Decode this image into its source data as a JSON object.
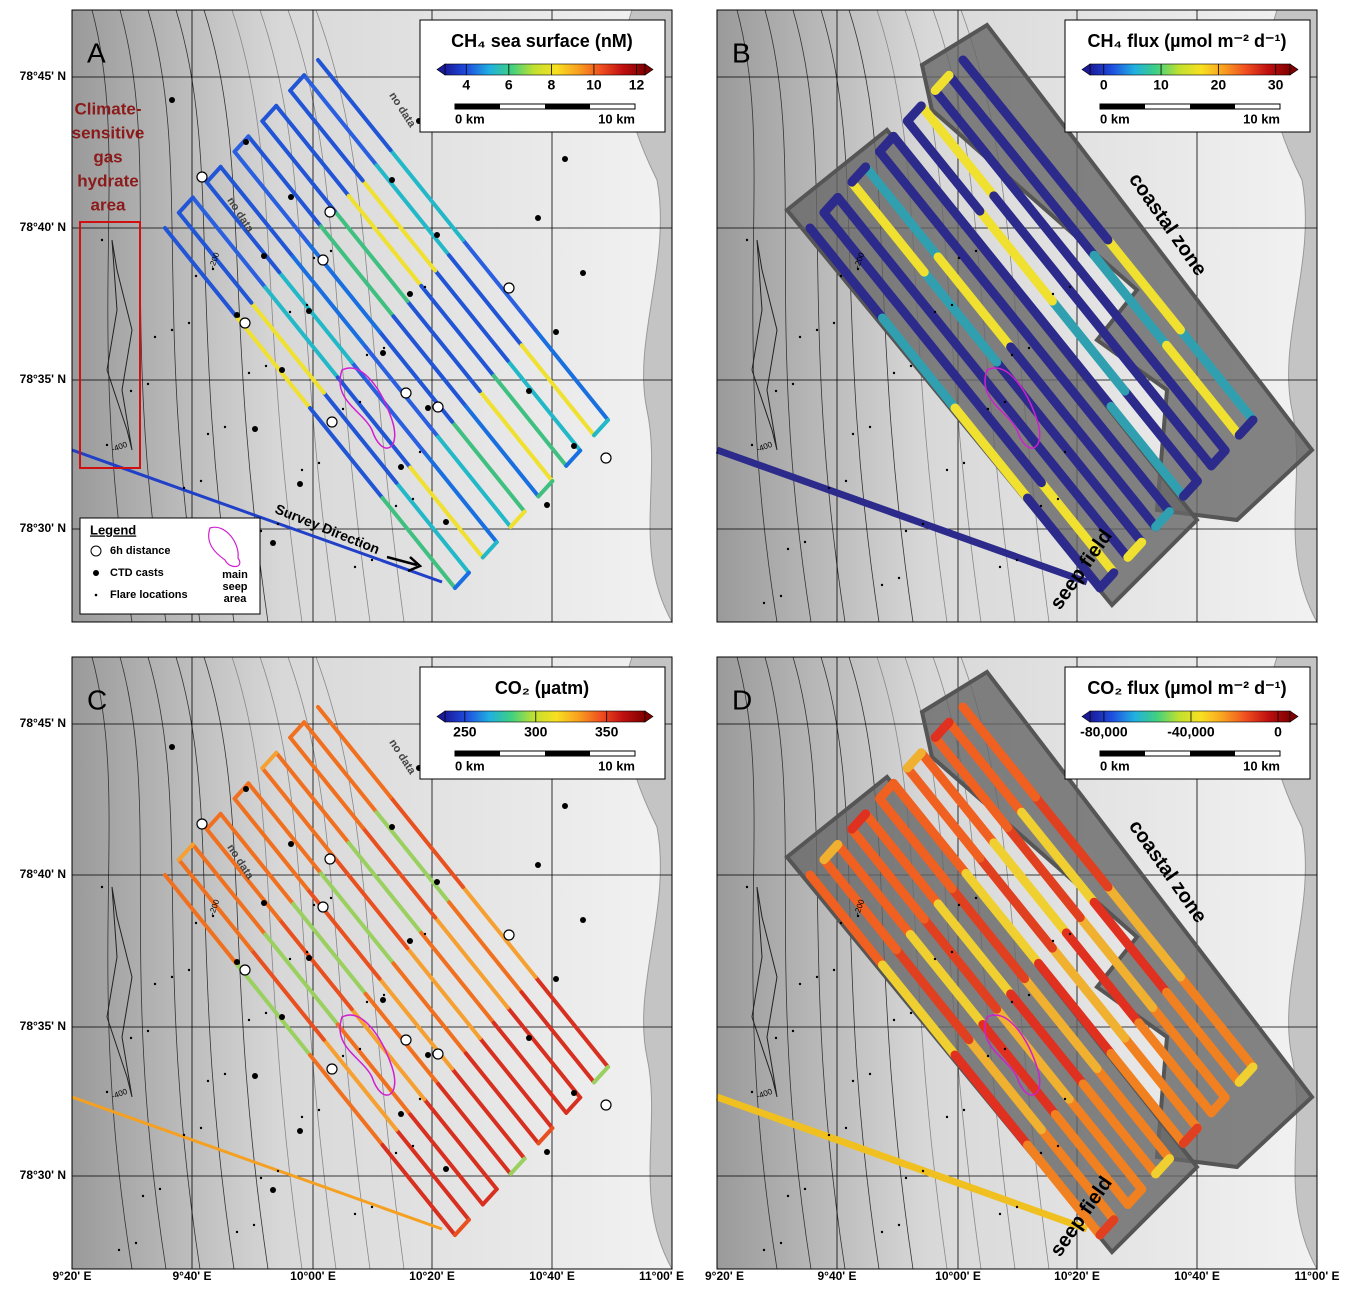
{
  "map": {
    "lat_labels": [
      "78°45' N",
      "78°40' N",
      "78°35' N",
      "78°30' N"
    ],
    "lon_labels": [
      "9°20' E",
      "9°40' E",
      "10°00' E",
      "10°20' E",
      "10°40' E",
      "11°00' E"
    ],
    "contour_labels": [
      "-200",
      "-400"
    ]
  },
  "colormap": [
    "#1a1a9a",
    "#1f4fe0",
    "#20b0e0",
    "#40d080",
    "#c0e030",
    "#f8e020",
    "#f8a020",
    "#f05020",
    "#c01010",
    "#800000"
  ],
  "panels": [
    {
      "letter": "A",
      "colorbar": {
        "title": "CH₄ sea surface (nM)",
        "clim": [
          3,
          12.4
        ],
        "ticks": [
          4,
          6,
          8,
          10,
          12
        ]
      },
      "scale": [
        "0 km",
        "10 km"
      ],
      "annotations": [
        "no data",
        "no data",
        "Survey Direction"
      ],
      "track_colors": [
        "#2155d6",
        "#1a6fe0",
        "#2155d6",
        "#22b8c8",
        "#2155d6",
        "#f0e030",
        "#2a60e0",
        "#40c080"
      ],
      "survey_color": "#2040c8"
    },
    {
      "letter": "B",
      "colorbar": {
        "title": "CH₄ flux (µmol m⁻² d⁻¹)",
        "clim": [
          -2.4,
          32.5
        ],
        "ticks": [
          0,
          10,
          20,
          30
        ]
      },
      "scale": [
        "0 km",
        "10 km"
      ],
      "annotations": [
        "coastal zone",
        "seep field"
      ],
      "track_colors": [
        "#2c2a8a",
        "#2c2a8a",
        "#2c2a8a",
        "#f0e030",
        "#2c2a8a",
        "#30a0b0",
        "#2c2a8a"
      ],
      "survey_color": "#2c2a8a"
    },
    {
      "letter": "C",
      "colorbar": {
        "title": "CO₂ (µatm)",
        "clim": [
          236,
          377
        ],
        "ticks": [
          250,
          300,
          350
        ]
      },
      "scale": [
        "0 km",
        "10 km"
      ],
      "annotations": [
        "no data",
        "no data"
      ],
      "track_colors": [
        "#f07020",
        "#e85020",
        "#f5a030",
        "#d83020",
        "#f07020",
        "#9ad060"
      ],
      "survey_color": "#f5a020"
    },
    {
      "letter": "D",
      "colorbar": {
        "title": "CO₂ flux (µmol m⁻² d⁻¹)",
        "clim": [
          -86400,
          5500
        ],
        "ticks": [
          {
            "value": -80000,
            "label": "-80,000"
          },
          {
            "value": -40000,
            "label": "-40,000"
          },
          0
        ]
      },
      "scale": [
        "0 km",
        "10 km"
      ],
      "annotations": [
        "coastal zone",
        "seep field"
      ],
      "track_colors": [
        "#f06020",
        "#e04020",
        "#f0b030",
        "#f08020",
        "#e03020",
        "#f0d030"
      ],
      "survey_color": "#f0c020"
    }
  ],
  "hydrate_area": [
    "Climate-",
    "sensitive",
    "gas",
    "hydrate",
    "area"
  ],
  "legend": {
    "title": "Legend",
    "items": [
      "6h distance",
      "CTD casts",
      "Flare locations"
    ],
    "seep": [
      "main",
      "seep",
      "area"
    ]
  }
}
